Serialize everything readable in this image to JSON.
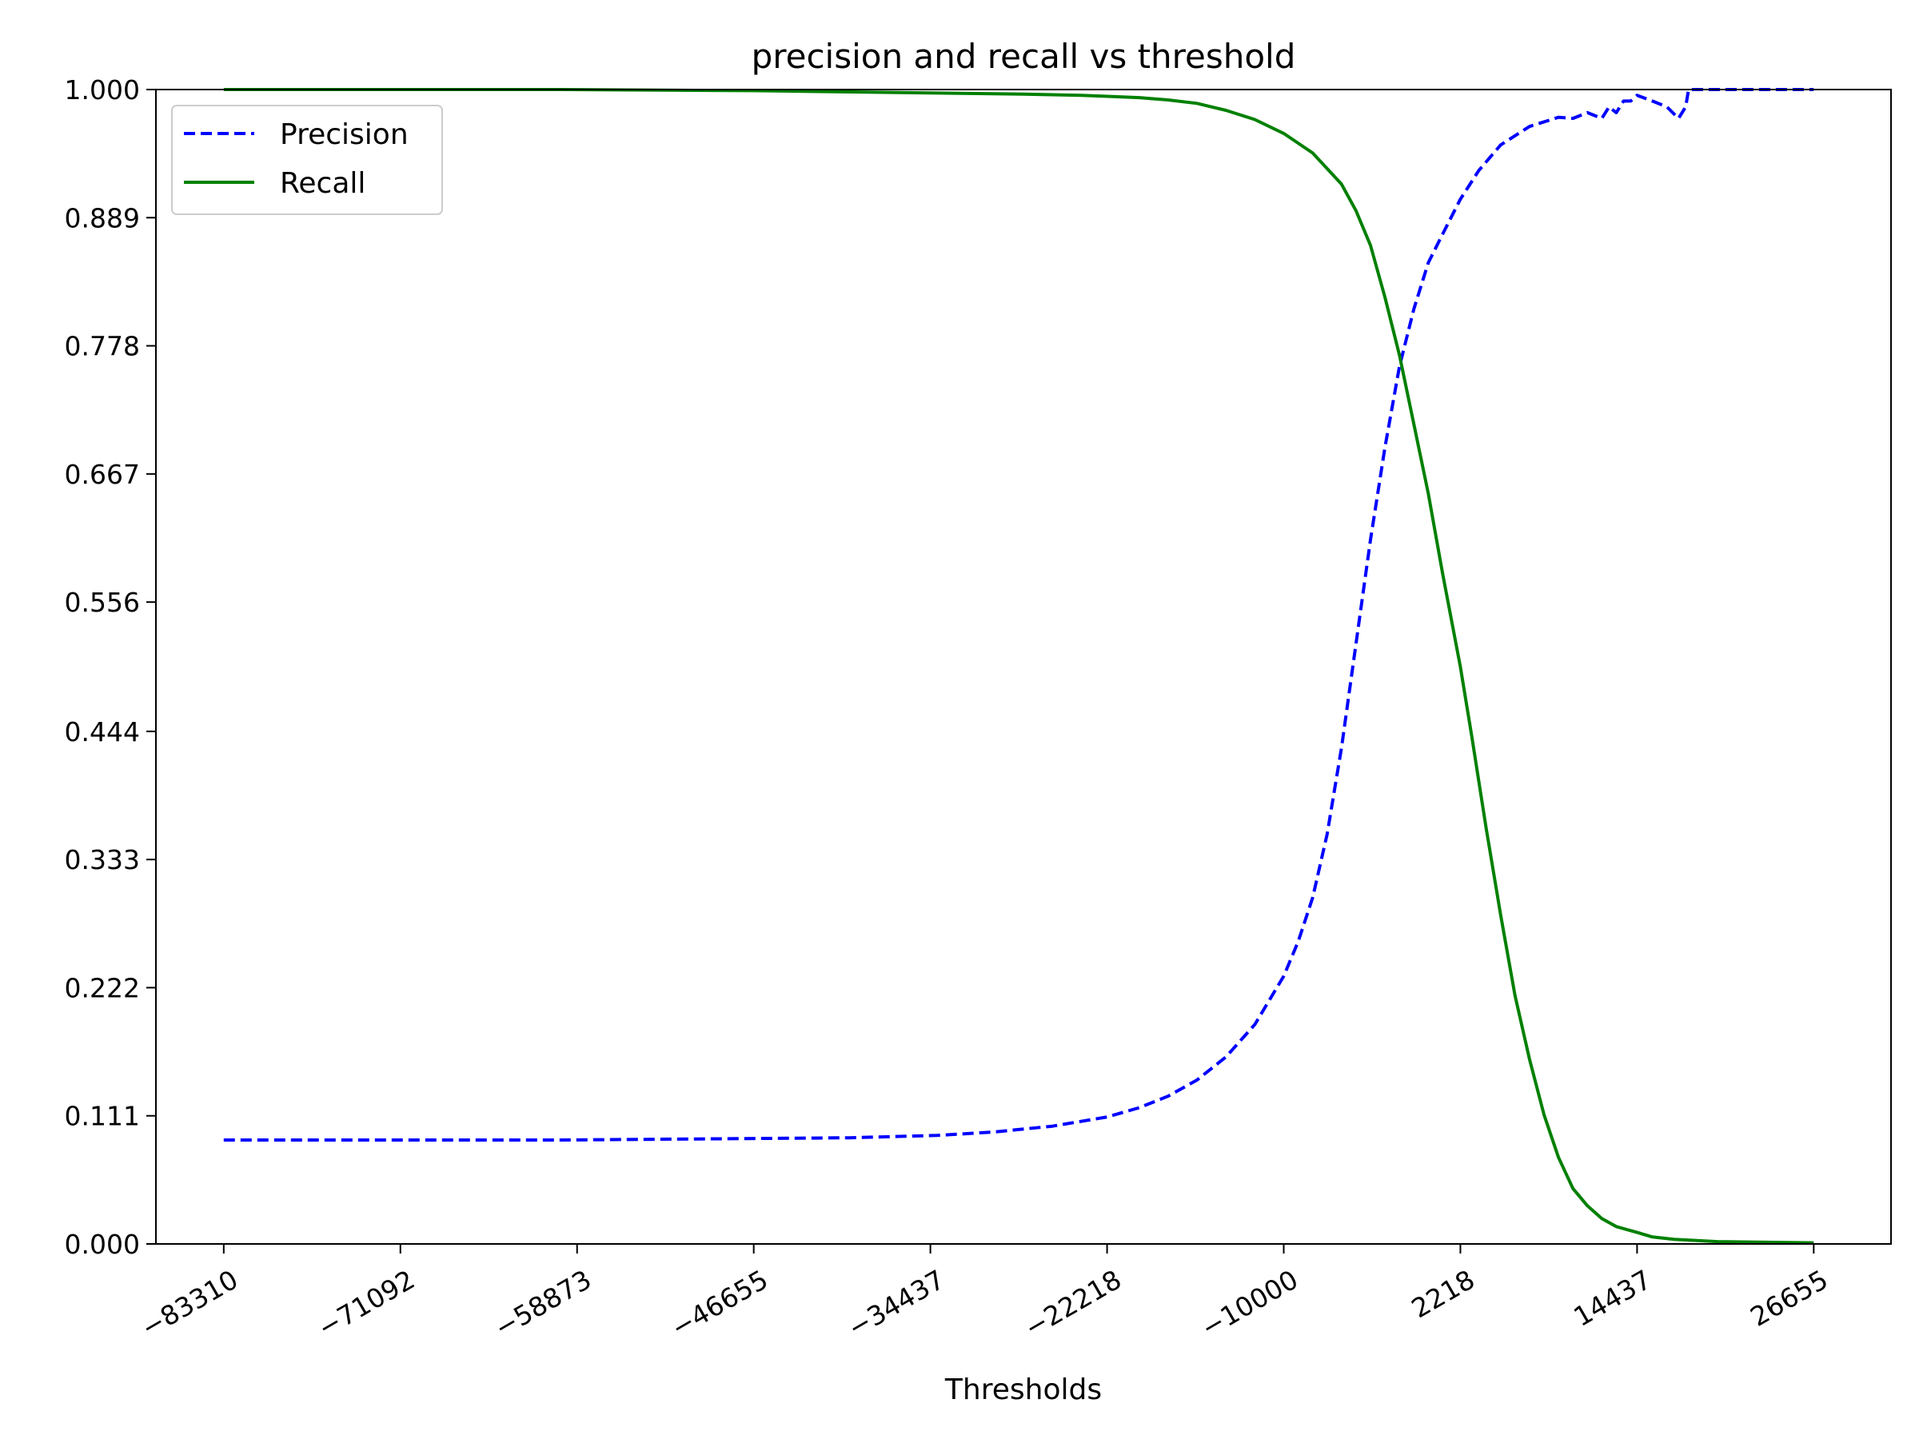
{
  "chart_data": {
    "type": "line",
    "title": "precision and recall vs threshold",
    "xlabel": "Thresholds",
    "ylabel": "",
    "xlim": [
      -88000,
      32000
    ],
    "ylim": [
      0,
      1
    ],
    "x_ticks": [
      -83310,
      -71092,
      -58873,
      -46655,
      -34437,
      -22218,
      -10000,
      2218,
      14437,
      26655
    ],
    "x_tick_labels": [
      "−83310",
      "−71092",
      "−58873",
      "−46655",
      "−34437",
      "−22218",
      "−10000",
      "2218",
      "14437",
      "26655"
    ],
    "y_ticks": [
      0,
      0.111,
      0.222,
      0.333,
      0.444,
      0.556,
      0.667,
      0.778,
      0.889,
      1.0
    ],
    "y_tick_labels": [
      "0.000",
      "0.111",
      "0.222",
      "0.333",
      "0.444",
      "0.556",
      "0.667",
      "0.778",
      "0.889",
      "1.000"
    ],
    "grid": false,
    "legend": {
      "placement": "top-left"
    },
    "series": [
      {
        "name": "Precision",
        "color": "#0000ff",
        "style": "dashed",
        "points": [
          [
            -83310,
            0.09
          ],
          [
            -70000,
            0.09
          ],
          [
            -60000,
            0.09
          ],
          [
            -50000,
            0.091
          ],
          [
            -40000,
            0.092
          ],
          [
            -34000,
            0.094
          ],
          [
            -30000,
            0.097
          ],
          [
            -26000,
            0.102
          ],
          [
            -22218,
            0.11
          ],
          [
            -20000,
            0.118
          ],
          [
            -18000,
            0.128
          ],
          [
            -16000,
            0.142
          ],
          [
            -14000,
            0.162
          ],
          [
            -12000,
            0.19
          ],
          [
            -10000,
            0.232
          ],
          [
            -9000,
            0.262
          ],
          [
            -8000,
            0.3
          ],
          [
            -7000,
            0.355
          ],
          [
            -6000,
            0.43
          ],
          [
            -5000,
            0.52
          ],
          [
            -4000,
            0.61
          ],
          [
            -3000,
            0.69
          ],
          [
            -2000,
            0.76
          ],
          [
            -1000,
            0.81
          ],
          [
            0,
            0.85
          ],
          [
            1000,
            0.875
          ],
          [
            2218,
            0.905
          ],
          [
            3500,
            0.93
          ],
          [
            5000,
            0.952
          ],
          [
            7000,
            0.968
          ],
          [
            9000,
            0.976
          ],
          [
            10000,
            0.975
          ],
          [
            11000,
            0.98
          ],
          [
            12000,
            0.975
          ],
          [
            12500,
            0.985
          ],
          [
            13000,
            0.98
          ],
          [
            13500,
            0.99
          ],
          [
            14000,
            0.99
          ],
          [
            14437,
            0.995
          ],
          [
            15500,
            0.99
          ],
          [
            16500,
            0.985
          ],
          [
            17300,
            0.975
          ],
          [
            17800,
            0.985
          ],
          [
            18000,
            1.0
          ],
          [
            22000,
            1.0
          ],
          [
            26655,
            1.0
          ]
        ]
      },
      {
        "name": "Recall",
        "color": "#008000",
        "style": "solid",
        "points": [
          [
            -83310,
            1.0
          ],
          [
            -60000,
            1.0
          ],
          [
            -46655,
            0.999
          ],
          [
            -34437,
            0.997
          ],
          [
            -28000,
            0.996
          ],
          [
            -24000,
            0.995
          ],
          [
            -20000,
            0.993
          ],
          [
            -18000,
            0.991
          ],
          [
            -16000,
            0.988
          ],
          [
            -14000,
            0.982
          ],
          [
            -12000,
            0.974
          ],
          [
            -10000,
            0.962
          ],
          [
            -8000,
            0.945
          ],
          [
            -6000,
            0.918
          ],
          [
            -5000,
            0.895
          ],
          [
            -4000,
            0.865
          ],
          [
            -3000,
            0.82
          ],
          [
            -2000,
            0.77
          ],
          [
            -1000,
            0.71
          ],
          [
            0,
            0.65
          ],
          [
            1000,
            0.58
          ],
          [
            2218,
            0.5
          ],
          [
            3000,
            0.44
          ],
          [
            4000,
            0.36
          ],
          [
            5000,
            0.285
          ],
          [
            6000,
            0.215
          ],
          [
            7000,
            0.16
          ],
          [
            8000,
            0.112
          ],
          [
            9000,
            0.075
          ],
          [
            10000,
            0.048
          ],
          [
            11000,
            0.033
          ],
          [
            12000,
            0.022
          ],
          [
            13000,
            0.015
          ],
          [
            14437,
            0.01
          ],
          [
            15500,
            0.006
          ],
          [
            17000,
            0.004
          ],
          [
            20000,
            0.002
          ],
          [
            26655,
            0.001
          ]
        ]
      }
    ]
  }
}
